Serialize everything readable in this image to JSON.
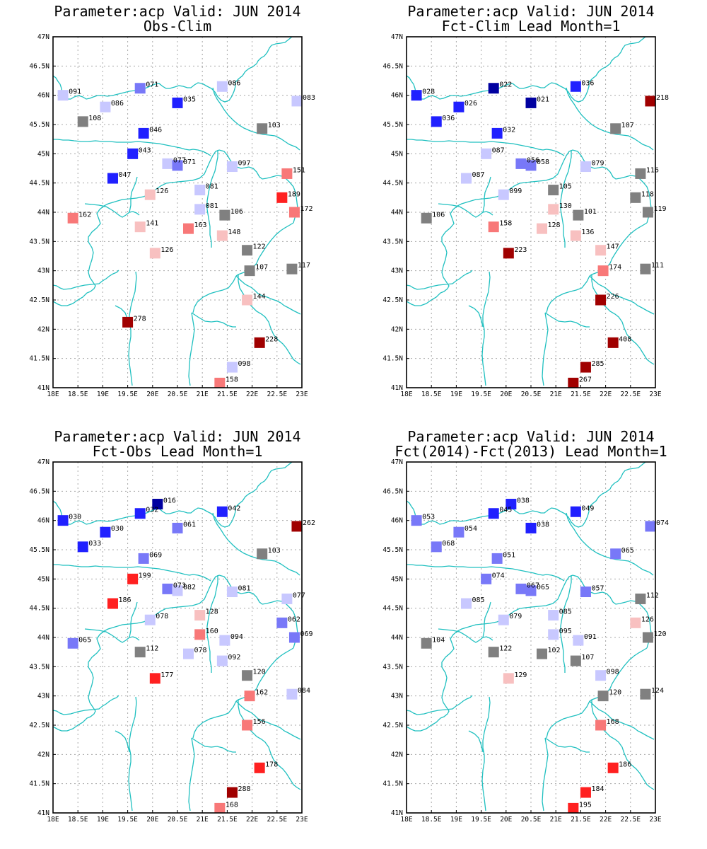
{
  "colors": {
    "coast": "#20c0c0",
    "grid": "#a8a8a8",
    "dark_red": "#a00000",
    "red": "#ff2020",
    "light_red": "#f87878",
    "pink": "#f8c0c0",
    "gray": "#808080",
    "light_blue": "#c8c8ff",
    "medium_blue": "#7878f8",
    "blue": "#2020ff",
    "dark_blue": "#0000a0"
  },
  "axes": {
    "xlim": [
      18,
      23
    ],
    "ylim": [
      41,
      47
    ],
    "xticks": [
      "18E",
      "18.5E",
      "19E",
      "19.5E",
      "20E",
      "20.5E",
      "21E",
      "21.5E",
      "22E",
      "22.5E",
      "23E"
    ],
    "yticks": [
      "41N",
      "41.5N",
      "42N",
      "42.5N",
      "43N",
      "43.5N",
      "44N",
      "44.5N",
      "45N",
      "45.5N",
      "46N",
      "46.5N",
      "47N"
    ]
  },
  "chart_data": [
    {
      "type": "scatter",
      "title": "Parameter:acp Valid: JUN 2014",
      "subtitle": "Obs-Clim",
      "grid": true,
      "points": [
        {
          "x": 18.2,
          "y": 46.0,
          "label": "091",
          "color": "light_blue"
        },
        {
          "x": 19.05,
          "y": 45.8,
          "label": "086",
          "color": "light_blue"
        },
        {
          "x": 19.75,
          "y": 46.12,
          "label": "071",
          "color": "medium_blue"
        },
        {
          "x": 20.5,
          "y": 45.87,
          "label": "035",
          "color": "blue"
        },
        {
          "x": 21.4,
          "y": 46.15,
          "label": "086",
          "color": "light_blue"
        },
        {
          "x": 22.9,
          "y": 45.9,
          "label": "083",
          "color": "light_blue"
        },
        {
          "x": 18.6,
          "y": 45.55,
          "label": "108",
          "color": "gray"
        },
        {
          "x": 19.82,
          "y": 45.35,
          "label": "046",
          "color": "blue"
        },
        {
          "x": 22.2,
          "y": 45.43,
          "label": "103",
          "color": "gray"
        },
        {
          "x": 19.6,
          "y": 45.0,
          "label": "043",
          "color": "blue"
        },
        {
          "x": 20.3,
          "y": 44.83,
          "label": "077",
          "color": "light_blue"
        },
        {
          "x": 20.5,
          "y": 44.8,
          "label": "071",
          "color": "medium_blue"
        },
        {
          "x": 21.6,
          "y": 44.78,
          "label": "097",
          "color": "light_blue"
        },
        {
          "x": 22.7,
          "y": 44.66,
          "label": "151",
          "color": "light_red"
        },
        {
          "x": 19.2,
          "y": 44.58,
          "label": "047",
          "color": "blue"
        },
        {
          "x": 19.95,
          "y": 44.3,
          "label": "126",
          "color": "pink"
        },
        {
          "x": 20.95,
          "y": 44.38,
          "label": "081",
          "color": "light_blue"
        },
        {
          "x": 22.6,
          "y": 44.25,
          "label": "189",
          "color": "red"
        },
        {
          "x": 20.95,
          "y": 44.05,
          "label": "081",
          "color": "light_blue"
        },
        {
          "x": 21.45,
          "y": 43.95,
          "label": "106",
          "color": "gray"
        },
        {
          "x": 22.85,
          "y": 44.0,
          "label": "172",
          "color": "light_red"
        },
        {
          "x": 18.4,
          "y": 43.9,
          "label": "162",
          "color": "light_red"
        },
        {
          "x": 19.75,
          "y": 43.75,
          "label": "141",
          "color": "pink"
        },
        {
          "x": 20.72,
          "y": 43.72,
          "label": "163",
          "color": "light_red"
        },
        {
          "x": 21.4,
          "y": 43.6,
          "label": "148",
          "color": "pink"
        },
        {
          "x": 20.05,
          "y": 43.3,
          "label": "126",
          "color": "pink"
        },
        {
          "x": 21.9,
          "y": 43.35,
          "label": "122",
          "color": "gray"
        },
        {
          "x": 21.95,
          "y": 43.0,
          "label": "107",
          "color": "gray"
        },
        {
          "x": 22.8,
          "y": 43.03,
          "label": "117",
          "color": "gray"
        },
        {
          "x": 21.9,
          "y": 42.5,
          "label": "144",
          "color": "pink"
        },
        {
          "x": 19.5,
          "y": 42.12,
          "label": "278",
          "color": "dark_red"
        },
        {
          "x": 22.15,
          "y": 41.77,
          "label": "228",
          "color": "dark_red"
        },
        {
          "x": 21.6,
          "y": 41.35,
          "label": "098",
          "color": "light_blue"
        },
        {
          "x": 21.35,
          "y": 41.08,
          "label": "158",
          "color": "light_red"
        }
      ]
    },
    {
      "type": "scatter",
      "title": "Parameter:acp Valid: JUN 2014",
      "subtitle": "Fct-Clim Lead Month=1",
      "grid": true,
      "points": [
        {
          "x": 18.2,
          "y": 46.0,
          "label": "028",
          "color": "blue"
        },
        {
          "x": 19.05,
          "y": 45.8,
          "label": "026",
          "color": "blue"
        },
        {
          "x": 19.75,
          "y": 46.12,
          "label": "022",
          "color": "dark_blue"
        },
        {
          "x": 20.5,
          "y": 45.87,
          "label": "021",
          "color": "dark_blue"
        },
        {
          "x": 21.4,
          "y": 46.15,
          "label": "036",
          "color": "blue"
        },
        {
          "x": 22.9,
          "y": 45.9,
          "label": "218",
          "color": "dark_red"
        },
        {
          "x": 18.6,
          "y": 45.55,
          "label": "036",
          "color": "blue"
        },
        {
          "x": 19.82,
          "y": 45.35,
          "label": "032",
          "color": "blue"
        },
        {
          "x": 22.2,
          "y": 45.43,
          "label": "107",
          "color": "gray"
        },
        {
          "x": 19.6,
          "y": 45.0,
          "label": "087",
          "color": "light_blue"
        },
        {
          "x": 20.3,
          "y": 44.83,
          "label": "056",
          "color": "medium_blue"
        },
        {
          "x": 20.5,
          "y": 44.8,
          "label": "058",
          "color": "medium_blue"
        },
        {
          "x": 21.6,
          "y": 44.78,
          "label": "079",
          "color": "light_blue"
        },
        {
          "x": 22.7,
          "y": 44.66,
          "label": "116",
          "color": "gray"
        },
        {
          "x": 19.2,
          "y": 44.58,
          "label": "087",
          "color": "light_blue"
        },
        {
          "x": 19.95,
          "y": 44.3,
          "label": "099",
          "color": "light_blue"
        },
        {
          "x": 20.95,
          "y": 44.38,
          "label": "105",
          "color": "gray"
        },
        {
          "x": 22.6,
          "y": 44.25,
          "label": "118",
          "color": "gray"
        },
        {
          "x": 20.95,
          "y": 44.05,
          "label": "130",
          "color": "pink"
        },
        {
          "x": 21.45,
          "y": 43.95,
          "label": "101",
          "color": "gray"
        },
        {
          "x": 22.85,
          "y": 44.0,
          "label": "119",
          "color": "gray"
        },
        {
          "x": 18.4,
          "y": 43.9,
          "label": "106",
          "color": "gray"
        },
        {
          "x": 19.75,
          "y": 43.75,
          "label": "158",
          "color": "light_red"
        },
        {
          "x": 20.72,
          "y": 43.72,
          "label": "128",
          "color": "pink"
        },
        {
          "x": 21.4,
          "y": 43.6,
          "label": "136",
          "color": "pink"
        },
        {
          "x": 20.05,
          "y": 43.3,
          "label": "223",
          "color": "dark_red"
        },
        {
          "x": 21.9,
          "y": 43.35,
          "label": "147",
          "color": "pink"
        },
        {
          "x": 21.95,
          "y": 43.0,
          "label": "174",
          "color": "light_red"
        },
        {
          "x": 22.8,
          "y": 43.03,
          "label": "111",
          "color": "gray"
        },
        {
          "x": 21.9,
          "y": 42.5,
          "label": "226",
          "color": "dark_red"
        },
        {
          "x": 22.15,
          "y": 41.77,
          "label": "408",
          "color": "dark_red"
        },
        {
          "x": 21.6,
          "y": 41.35,
          "label": "285",
          "color": "dark_red"
        },
        {
          "x": 21.35,
          "y": 41.08,
          "label": "267",
          "color": "dark_red"
        }
      ]
    },
    {
      "type": "scatter",
      "title": "Parameter:acp Valid: JUN 2014",
      "subtitle": "Fct-Obs Lead Month=1",
      "grid": true,
      "points": [
        {
          "x": 18.2,
          "y": 46.0,
          "label": "030",
          "color": "blue"
        },
        {
          "x": 19.05,
          "y": 45.8,
          "label": "030",
          "color": "blue"
        },
        {
          "x": 19.75,
          "y": 46.12,
          "label": "032",
          "color": "blue"
        },
        {
          "x": 20.1,
          "y": 46.28,
          "label": "016",
          "color": "dark_blue"
        },
        {
          "x": 20.5,
          "y": 45.87,
          "label": "061",
          "color": "medium_blue"
        },
        {
          "x": 21.4,
          "y": 46.15,
          "label": "042",
          "color": "blue"
        },
        {
          "x": 22.9,
          "y": 45.9,
          "label": "262",
          "color": "dark_red"
        },
        {
          "x": 18.6,
          "y": 45.55,
          "label": "033",
          "color": "blue"
        },
        {
          "x": 19.82,
          "y": 45.35,
          "label": "069",
          "color": "medium_blue"
        },
        {
          "x": 22.2,
          "y": 45.43,
          "label": "103",
          "color": "gray"
        },
        {
          "x": 19.6,
          "y": 45.0,
          "label": "199",
          "color": "red"
        },
        {
          "x": 20.3,
          "y": 44.83,
          "label": "073",
          "color": "medium_blue"
        },
        {
          "x": 20.5,
          "y": 44.8,
          "label": "082",
          "color": "light_blue"
        },
        {
          "x": 21.6,
          "y": 44.78,
          "label": "081",
          "color": "light_blue"
        },
        {
          "x": 22.7,
          "y": 44.66,
          "label": "077",
          "color": "light_blue"
        },
        {
          "x": 19.2,
          "y": 44.58,
          "label": "186",
          "color": "red"
        },
        {
          "x": 19.95,
          "y": 44.3,
          "label": "078",
          "color": "light_blue"
        },
        {
          "x": 20.95,
          "y": 44.38,
          "label": "128",
          "color": "pink"
        },
        {
          "x": 22.6,
          "y": 44.25,
          "label": "062",
          "color": "medium_blue"
        },
        {
          "x": 20.95,
          "y": 44.05,
          "label": "160",
          "color": "light_red"
        },
        {
          "x": 21.45,
          "y": 43.95,
          "label": "094",
          "color": "light_blue"
        },
        {
          "x": 22.85,
          "y": 44.0,
          "label": "069",
          "color": "medium_blue"
        },
        {
          "x": 18.4,
          "y": 43.9,
          "label": "065",
          "color": "medium_blue"
        },
        {
          "x": 19.75,
          "y": 43.75,
          "label": "112",
          "color": "gray"
        },
        {
          "x": 20.72,
          "y": 43.72,
          "label": "078",
          "color": "light_blue"
        },
        {
          "x": 21.4,
          "y": 43.6,
          "label": "092",
          "color": "light_blue"
        },
        {
          "x": 20.05,
          "y": 43.3,
          "label": "177",
          "color": "red"
        },
        {
          "x": 21.9,
          "y": 43.35,
          "label": "120",
          "color": "gray"
        },
        {
          "x": 21.95,
          "y": 43.0,
          "label": "162",
          "color": "light_red"
        },
        {
          "x": 22.8,
          "y": 43.03,
          "label": "084",
          "color": "light_blue"
        },
        {
          "x": 21.9,
          "y": 42.5,
          "label": "156",
          "color": "light_red"
        },
        {
          "x": 22.15,
          "y": 41.77,
          "label": "178",
          "color": "red"
        },
        {
          "x": 21.6,
          "y": 41.35,
          "label": "288",
          "color": "dark_red"
        },
        {
          "x": 21.35,
          "y": 41.08,
          "label": "168",
          "color": "light_red"
        }
      ]
    },
    {
      "type": "scatter",
      "title": "Parameter:acp Valid: JUN 2014",
      "subtitle": "Fct(2014)-Fct(2013) Lead Month=1",
      "grid": true,
      "points": [
        {
          "x": 18.2,
          "y": 46.0,
          "label": "053",
          "color": "medium_blue"
        },
        {
          "x": 19.05,
          "y": 45.8,
          "label": "054",
          "color": "medium_blue"
        },
        {
          "x": 19.75,
          "y": 46.12,
          "label": "045",
          "color": "blue"
        },
        {
          "x": 20.1,
          "y": 46.28,
          "label": "038",
          "color": "blue"
        },
        {
          "x": 20.5,
          "y": 45.87,
          "label": "038",
          "color": "blue"
        },
        {
          "x": 21.4,
          "y": 46.15,
          "label": "049",
          "color": "blue"
        },
        {
          "x": 22.9,
          "y": 45.9,
          "label": "074",
          "color": "medium_blue"
        },
        {
          "x": 18.6,
          "y": 45.55,
          "label": "068",
          "color": "medium_blue"
        },
        {
          "x": 19.82,
          "y": 45.35,
          "label": "051",
          "color": "medium_blue"
        },
        {
          "x": 22.2,
          "y": 45.43,
          "label": "065",
          "color": "medium_blue"
        },
        {
          "x": 19.6,
          "y": 45.0,
          "label": "074",
          "color": "medium_blue"
        },
        {
          "x": 20.3,
          "y": 44.83,
          "label": "067",
          "color": "medium_blue"
        },
        {
          "x": 20.5,
          "y": 44.8,
          "label": "065",
          "color": "medium_blue"
        },
        {
          "x": 21.6,
          "y": 44.78,
          "label": "057",
          "color": "medium_blue"
        },
        {
          "x": 22.7,
          "y": 44.66,
          "label": "112",
          "color": "gray"
        },
        {
          "x": 19.2,
          "y": 44.58,
          "label": "085",
          "color": "light_blue"
        },
        {
          "x": 19.95,
          "y": 44.3,
          "label": "079",
          "color": "light_blue"
        },
        {
          "x": 20.95,
          "y": 44.38,
          "label": "085",
          "color": "light_blue"
        },
        {
          "x": 22.6,
          "y": 44.25,
          "label": "126",
          "color": "pink"
        },
        {
          "x": 20.95,
          "y": 44.05,
          "label": "095",
          "color": "light_blue"
        },
        {
          "x": 21.45,
          "y": 43.95,
          "label": "091",
          "color": "light_blue"
        },
        {
          "x": 22.85,
          "y": 44.0,
          "label": "120",
          "color": "gray"
        },
        {
          "x": 18.4,
          "y": 43.9,
          "label": "104",
          "color": "gray"
        },
        {
          "x": 19.75,
          "y": 43.75,
          "label": "122",
          "color": "gray"
        },
        {
          "x": 20.72,
          "y": 43.72,
          "label": "102",
          "color": "gray"
        },
        {
          "x": 21.4,
          "y": 43.6,
          "label": "107",
          "color": "gray"
        },
        {
          "x": 20.05,
          "y": 43.3,
          "label": "129",
          "color": "pink"
        },
        {
          "x": 21.9,
          "y": 43.35,
          "label": "098",
          "color": "light_blue"
        },
        {
          "x": 21.95,
          "y": 43.0,
          "label": "120",
          "color": "gray"
        },
        {
          "x": 22.8,
          "y": 43.03,
          "label": "124",
          "color": "gray"
        },
        {
          "x": 21.9,
          "y": 42.5,
          "label": "168",
          "color": "light_red"
        },
        {
          "x": 22.15,
          "y": 41.77,
          "label": "186",
          "color": "red"
        },
        {
          "x": 21.6,
          "y": 41.35,
          "label": "184",
          "color": "red"
        },
        {
          "x": 21.35,
          "y": 41.08,
          "label": "195",
          "color": "red"
        }
      ]
    }
  ]
}
